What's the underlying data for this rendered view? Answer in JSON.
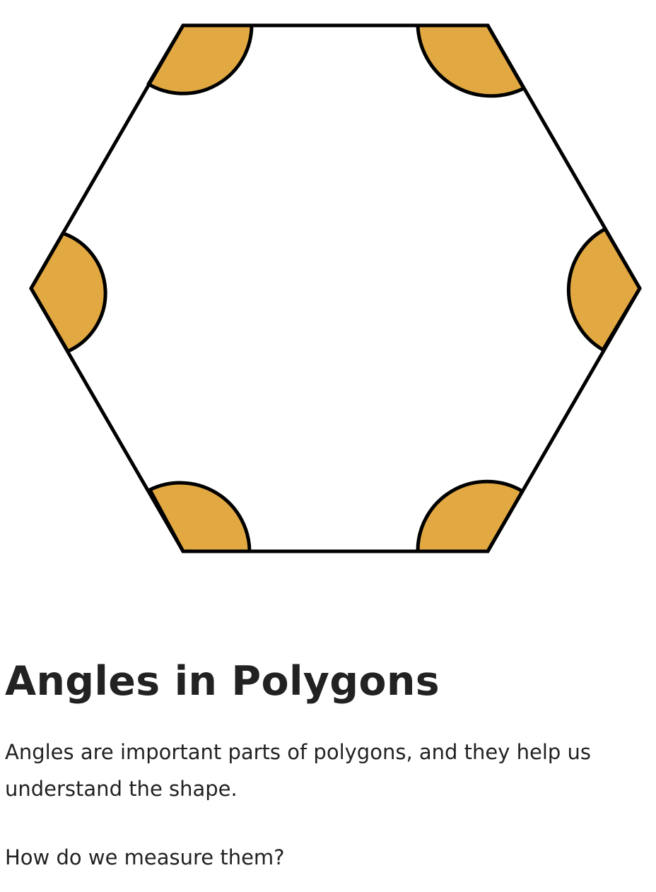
{
  "colors": {
    "angle_fill": "#e2a942",
    "stroke": "#000000",
    "text": "#222222"
  },
  "diagram": {
    "shape": "regular-hexagon",
    "marked_angles": 6
  },
  "text": {
    "title": "Angles in Polygons",
    "intro": "Angles are important parts of polygons, and they help us understand the shape.",
    "question": "How do we measure them?"
  }
}
